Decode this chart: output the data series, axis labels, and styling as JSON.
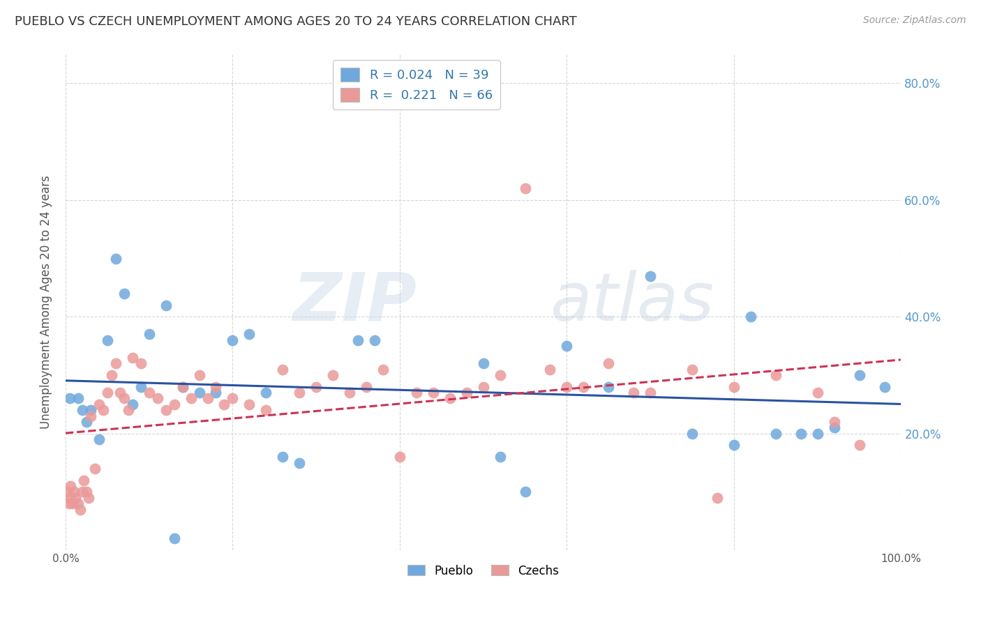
{
  "title": "PUEBLO VS CZECH UNEMPLOYMENT AMONG AGES 20 TO 24 YEARS CORRELATION CHART",
  "source": "Source: ZipAtlas.com",
  "ylabel": "Unemployment Among Ages 20 to 24 years",
  "xlim": [
    0.0,
    1.0
  ],
  "ylim": [
    0.0,
    0.85
  ],
  "xticks": [
    0.0,
    0.2,
    0.4,
    0.6,
    0.8,
    1.0
  ],
  "xticklabels": [
    "0.0%",
    "",
    "",
    "",
    "",
    "100.0%"
  ],
  "yticks": [
    0.0,
    0.2,
    0.4,
    0.6,
    0.8
  ],
  "yticklabels": [
    "",
    "20.0%",
    "40.0%",
    "60.0%",
    "80.0%"
  ],
  "pueblo_R": 0.024,
  "pueblo_N": 39,
  "czech_R": 0.221,
  "czech_N": 66,
  "pueblo_color": "#6fa8dc",
  "czech_color": "#ea9999",
  "pueblo_line_color": "#2a52a0",
  "czech_line_color": "#cc3355",
  "watermark_zip": "ZIP",
  "watermark_atlas": "atlas",
  "legend_label_pueblo": "Pueblo",
  "legend_label_czech": "Czechs",
  "pueblo_x": [
    0.005,
    0.015,
    0.02,
    0.025,
    0.03,
    0.04,
    0.05,
    0.06,
    0.07,
    0.08,
    0.09,
    0.1,
    0.12,
    0.14,
    0.16,
    0.18,
    0.2,
    0.22,
    0.24,
    0.26,
    0.35,
    0.37,
    0.5,
    0.52,
    0.55,
    0.6,
    0.65,
    0.7,
    0.75,
    0.8,
    0.82,
    0.85,
    0.88,
    0.9,
    0.92,
    0.95,
    0.98,
    0.13,
    0.28
  ],
  "pueblo_y": [
    0.26,
    0.26,
    0.24,
    0.22,
    0.24,
    0.19,
    0.36,
    0.5,
    0.44,
    0.25,
    0.28,
    0.37,
    0.42,
    0.28,
    0.27,
    0.27,
    0.36,
    0.37,
    0.27,
    0.16,
    0.36,
    0.36,
    0.32,
    0.16,
    0.1,
    0.35,
    0.28,
    0.47,
    0.2,
    0.18,
    0.4,
    0.2,
    0.2,
    0.2,
    0.21,
    0.3,
    0.28,
    0.02,
    0.15
  ],
  "czech_x": [
    0.002,
    0.004,
    0.005,
    0.006,
    0.008,
    0.01,
    0.012,
    0.015,
    0.018,
    0.02,
    0.022,
    0.025,
    0.028,
    0.03,
    0.035,
    0.04,
    0.045,
    0.05,
    0.055,
    0.06,
    0.065,
    0.07,
    0.075,
    0.08,
    0.09,
    0.1,
    0.11,
    0.12,
    0.13,
    0.14,
    0.15,
    0.16,
    0.17,
    0.18,
    0.19,
    0.2,
    0.22,
    0.24,
    0.26,
    0.28,
    0.3,
    0.32,
    0.34,
    0.36,
    0.38,
    0.4,
    0.44,
    0.46,
    0.48,
    0.5,
    0.55,
    0.6,
    0.65,
    0.7,
    0.75,
    0.8,
    0.85,
    0.9,
    0.92,
    0.95,
    0.42,
    0.52,
    0.58,
    0.62,
    0.68,
    0.78
  ],
  "czech_y": [
    0.1,
    0.08,
    0.09,
    0.11,
    0.08,
    0.1,
    0.09,
    0.08,
    0.07,
    0.1,
    0.12,
    0.1,
    0.09,
    0.23,
    0.14,
    0.25,
    0.24,
    0.27,
    0.3,
    0.32,
    0.27,
    0.26,
    0.24,
    0.33,
    0.32,
    0.27,
    0.26,
    0.24,
    0.25,
    0.28,
    0.26,
    0.3,
    0.26,
    0.28,
    0.25,
    0.26,
    0.25,
    0.24,
    0.31,
    0.27,
    0.28,
    0.3,
    0.27,
    0.28,
    0.31,
    0.16,
    0.27,
    0.26,
    0.27,
    0.28,
    0.62,
    0.28,
    0.32,
    0.27,
    0.31,
    0.28,
    0.3,
    0.27,
    0.22,
    0.18,
    0.27,
    0.3,
    0.31,
    0.28,
    0.27,
    0.09
  ]
}
